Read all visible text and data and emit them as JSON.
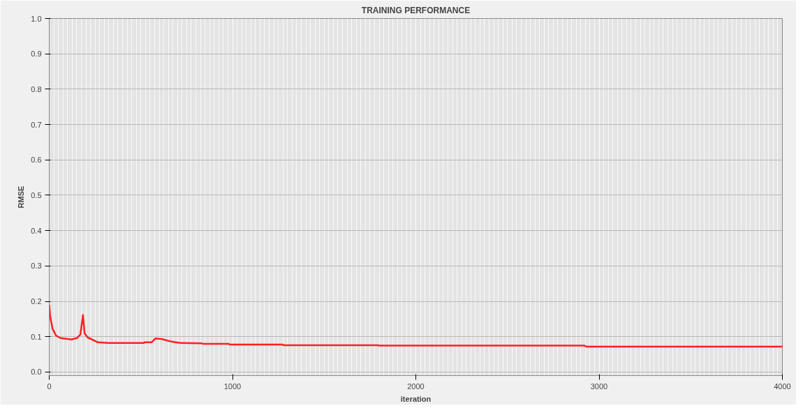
{
  "chart_data": {
    "type": "line",
    "title": "TRAINING PERFORMANCE",
    "xlabel": "iteration",
    "ylabel": "RMSE",
    "xlim": [
      0,
      4000
    ],
    "xticks": [
      0,
      1000,
      2000,
      3000,
      4000
    ],
    "ylim": [
      -0.01,
      1.0
    ],
    "yticks": [
      {
        "value": 0,
        "label": "0.0"
      },
      0.1,
      0.2,
      0.3,
      0.4,
      0.5,
      0.6,
      0.7,
      0.8,
      0.9,
      {
        "value": 1,
        "label": "1.0"
      }
    ],
    "grid": true,
    "marker": "none",
    "line_style": "solid",
    "series": [
      {
        "color": "#ff2020",
        "x": [
          0,
          5,
          18,
          37,
          62,
          107,
          120,
          151,
          170,
          184,
          193,
          209,
          266,
          323,
          514,
          520,
          558,
          580,
          616,
          667,
          718,
          832,
          838,
          978,
          985,
          1271,
          1278,
          1791,
          1800,
          2918,
          2930,
          4000
        ],
        "values": [
          0.19,
          0.157,
          0.123,
          0.103,
          0.096,
          0.093,
          0.092,
          0.096,
          0.106,
          0.161,
          0.11,
          0.098,
          0.084,
          0.082,
          0.082,
          0.084,
          0.084,
          0.095,
          0.093,
          0.086,
          0.082,
          0.081,
          0.08,
          0.08,
          0.078,
          0.078,
          0.076,
          0.076,
          0.075,
          0.075,
          0.072,
          0.072
        ]
      }
    ]
  }
}
